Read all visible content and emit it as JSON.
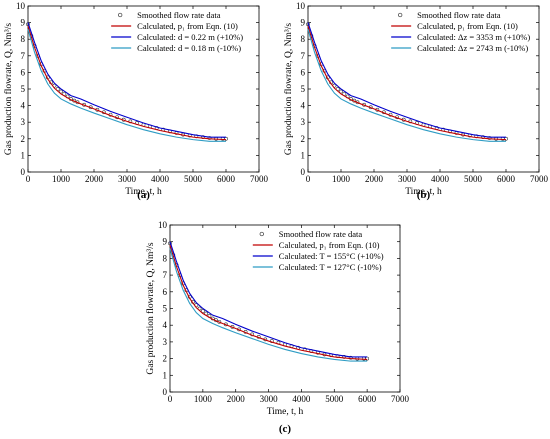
{
  "chart_data": [
    {
      "type": "line",
      "panel_label": "(a)",
      "xlabel": "Time, t, h",
      "ylabel": "Gas production flowrate, Q, Nm³/s",
      "xlim": [
        0,
        7000
      ],
      "ylim": [
        0,
        10
      ],
      "xticks": [
        "0",
        "1000",
        "2000",
        "3000",
        "4000",
        "5000",
        "6000",
        "7000"
      ],
      "yticks": [
        "0",
        "1",
        "2",
        "3",
        "4",
        "5",
        "6",
        "7",
        "8",
        "9",
        "10"
      ],
      "grid": false,
      "legend_placement": "top-right",
      "series": [
        {
          "name": "Smoothed flow rate data",
          "style": "markers",
          "color": "#333333",
          "x": [
            0,
            100,
            200,
            300,
            400,
            500,
            600,
            700,
            800,
            900,
            1000,
            1100,
            1200,
            1300,
            1400,
            1500,
            1700,
            1900,
            2100,
            2300,
            2500,
            2700,
            2900,
            3100,
            3300,
            3500,
            3700,
            3900,
            4100,
            4300,
            4500,
            4700,
            4900,
            5100,
            5300,
            5500,
            5700,
            5900,
            6000
          ],
          "y": [
            8.9,
            8.2,
            7.6,
            7.0,
            6.5,
            6.1,
            5.7,
            5.4,
            5.2,
            5.0,
            4.85,
            4.7,
            4.55,
            4.4,
            4.3,
            4.2,
            4.05,
            3.9,
            3.75,
            3.6,
            3.45,
            3.3,
            3.15,
            3.05,
            2.95,
            2.85,
            2.75,
            2.65,
            2.55,
            2.45,
            2.35,
            2.25,
            2.2,
            2.15,
            2.1,
            2.05,
            2.0,
            2.0,
            2.0
          ]
        },
        {
          "name": "Calculated, p₁ from Eqn. (10)",
          "style": "line",
          "color": "#c00000",
          "x": [
            0,
            200,
            400,
            600,
            800,
            1000,
            1300,
            1600,
            2000,
            2500,
            3000,
            3500,
            4000,
            4500,
            5000,
            5500,
            6000
          ],
          "y": [
            8.8,
            7.5,
            6.4,
            5.6,
            5.05,
            4.7,
            4.35,
            4.1,
            3.8,
            3.4,
            3.05,
            2.75,
            2.5,
            2.3,
            2.1,
            2.0,
            1.95
          ]
        },
        {
          "name": "Calculated:  d = 0.22 m (+10%)",
          "style": "line",
          "color": "#0000cc",
          "x": [
            0,
            200,
            400,
            600,
            800,
            1000,
            1300,
            1600,
            2000,
            2500,
            3000,
            3500,
            4000,
            4500,
            5000,
            5500,
            6000
          ],
          "y": [
            9.0,
            7.8,
            6.7,
            5.9,
            5.35,
            5.0,
            4.6,
            4.4,
            4.05,
            3.65,
            3.3,
            2.95,
            2.65,
            2.45,
            2.25,
            2.1,
            2.1
          ]
        },
        {
          "name": "Calculated:  d = 0.18 m (-10%)",
          "style": "line",
          "color": "#2e9cc4",
          "x": [
            0,
            200,
            400,
            600,
            800,
            1000,
            1300,
            1600,
            2000,
            2500,
            3000,
            3500,
            4000,
            4500,
            5000,
            5500,
            6000
          ],
          "y": [
            8.6,
            7.2,
            6.1,
            5.3,
            4.75,
            4.4,
            4.1,
            3.85,
            3.55,
            3.2,
            2.85,
            2.55,
            2.3,
            2.1,
            1.95,
            1.85,
            1.85
          ]
        }
      ]
    },
    {
      "type": "line",
      "panel_label": "(b)",
      "xlabel": "Time, t, h",
      "ylabel": "Gas production flowrate, Q, Nm³/s",
      "xlim": [
        0,
        7000
      ],
      "ylim": [
        0,
        10
      ],
      "xticks": [
        "0",
        "1000",
        "2000",
        "3000",
        "4000",
        "5000",
        "6000",
        "7000"
      ],
      "yticks": [
        "0",
        "1",
        "2",
        "3",
        "4",
        "5",
        "6",
        "7",
        "8",
        "9",
        "10"
      ],
      "grid": false,
      "legend_placement": "top-right",
      "series": [
        {
          "name": "Smoothed flow rate data",
          "style": "markers",
          "color": "#333333",
          "x": [
            0,
            100,
            200,
            300,
            400,
            500,
            600,
            700,
            800,
            900,
            1000,
            1100,
            1200,
            1300,
            1400,
            1500,
            1700,
            1900,
            2100,
            2300,
            2500,
            2700,
            2900,
            3100,
            3300,
            3500,
            3700,
            3900,
            4100,
            4300,
            4500,
            4700,
            4900,
            5100,
            5300,
            5500,
            5700,
            5900,
            6000
          ],
          "y": [
            8.9,
            8.2,
            7.6,
            7.0,
            6.5,
            6.1,
            5.7,
            5.4,
            5.2,
            5.0,
            4.85,
            4.7,
            4.55,
            4.4,
            4.3,
            4.2,
            4.05,
            3.9,
            3.75,
            3.6,
            3.45,
            3.3,
            3.15,
            3.05,
            2.95,
            2.85,
            2.75,
            2.65,
            2.55,
            2.45,
            2.35,
            2.25,
            2.2,
            2.15,
            2.1,
            2.05,
            2.0,
            2.0,
            2.0
          ]
        },
        {
          "name": "Calculated, p₁ from Eqn. (10)",
          "style": "line",
          "color": "#c00000",
          "x": [
            0,
            200,
            400,
            600,
            800,
            1000,
            1300,
            1600,
            2000,
            2500,
            3000,
            3500,
            4000,
            4500,
            5000,
            5500,
            6000
          ],
          "y": [
            8.8,
            7.5,
            6.4,
            5.6,
            5.05,
            4.7,
            4.35,
            4.1,
            3.8,
            3.4,
            3.05,
            2.75,
            2.5,
            2.3,
            2.1,
            2.0,
            1.95
          ]
        },
        {
          "name": "Calculated:   Δz = 3353 m (+10%)",
          "style": "line",
          "color": "#0000cc",
          "x": [
            0,
            200,
            400,
            600,
            800,
            1000,
            1300,
            1600,
            2000,
            2500,
            3000,
            3500,
            4000,
            4500,
            5000,
            5500,
            6000
          ],
          "y": [
            9.0,
            7.8,
            6.7,
            5.9,
            5.35,
            5.0,
            4.6,
            4.4,
            4.05,
            3.65,
            3.3,
            2.95,
            2.65,
            2.45,
            2.25,
            2.1,
            2.1
          ]
        },
        {
          "name": "Calculated:    Δz = 2743 m (-10%)",
          "style": "line",
          "color": "#2e9cc4",
          "x": [
            0,
            200,
            400,
            600,
            800,
            1000,
            1300,
            1600,
            2000,
            2500,
            3000,
            3500,
            4000,
            4500,
            5000,
            5500,
            6000
          ],
          "y": [
            8.6,
            7.2,
            6.1,
            5.3,
            4.75,
            4.4,
            4.1,
            3.85,
            3.55,
            3.2,
            2.85,
            2.55,
            2.3,
            2.1,
            1.95,
            1.85,
            1.85
          ]
        }
      ]
    },
    {
      "type": "line",
      "panel_label": "(c)",
      "xlabel": "Time, t, h",
      "ylabel": "Gas production flowrate, Q, Nm³/s",
      "xlim": [
        0,
        7000
      ],
      "ylim": [
        0,
        10
      ],
      "xticks": [
        "0",
        "1000",
        "2000",
        "3000",
        "4000",
        "5000",
        "6000",
        "7000"
      ],
      "yticks": [
        "0",
        "1",
        "2",
        "3",
        "4",
        "5",
        "6",
        "7",
        "8",
        "9",
        "10"
      ],
      "grid": false,
      "legend_placement": "top-right",
      "series": [
        {
          "name": "Smoothed flow rate data",
          "style": "markers",
          "color": "#333333",
          "x": [
            0,
            100,
            200,
            300,
            400,
            500,
            600,
            700,
            800,
            900,
            1000,
            1100,
            1200,
            1300,
            1400,
            1500,
            1700,
            1900,
            2100,
            2300,
            2500,
            2700,
            2900,
            3100,
            3300,
            3500,
            3700,
            3900,
            4100,
            4300,
            4500,
            4700,
            4900,
            5100,
            5300,
            5500,
            5700,
            5900,
            6000
          ],
          "y": [
            8.9,
            8.2,
            7.6,
            7.0,
            6.5,
            6.1,
            5.7,
            5.4,
            5.2,
            5.0,
            4.85,
            4.7,
            4.55,
            4.4,
            4.3,
            4.2,
            4.05,
            3.9,
            3.75,
            3.6,
            3.45,
            3.3,
            3.15,
            3.05,
            2.95,
            2.85,
            2.75,
            2.65,
            2.55,
            2.45,
            2.35,
            2.25,
            2.2,
            2.15,
            2.1,
            2.05,
            2.0,
            2.0,
            2.0
          ]
        },
        {
          "name": "Calculated, p₁ from Eqn. (10)",
          "style": "line",
          "color": "#c00000",
          "x": [
            0,
            200,
            400,
            600,
            800,
            1000,
            1300,
            1600,
            2000,
            2500,
            3000,
            3500,
            4000,
            4500,
            5000,
            5500,
            6000
          ],
          "y": [
            8.8,
            7.5,
            6.4,
            5.6,
            5.05,
            4.7,
            4.35,
            4.1,
            3.8,
            3.4,
            3.05,
            2.75,
            2.5,
            2.3,
            2.1,
            2.0,
            1.95
          ]
        },
        {
          "name": "Calculated:  T = 155°C (+10%)",
          "style": "line",
          "color": "#0000cc",
          "x": [
            0,
            200,
            400,
            600,
            800,
            1000,
            1300,
            1600,
            2000,
            2500,
            3000,
            3500,
            4000,
            4500,
            5000,
            5500,
            6000
          ],
          "y": [
            9.0,
            7.8,
            6.7,
            5.9,
            5.35,
            5.0,
            4.6,
            4.4,
            4.05,
            3.65,
            3.3,
            2.95,
            2.65,
            2.45,
            2.25,
            2.1,
            2.1
          ]
        },
        {
          "name": "Calculated:  T = 127°C (-10%)",
          "style": "line",
          "color": "#2e9cc4",
          "x": [
            0,
            200,
            400,
            600,
            800,
            1000,
            1300,
            1600,
            2000,
            2500,
            3000,
            3500,
            4000,
            4500,
            5000,
            5500,
            6000
          ],
          "y": [
            8.6,
            7.2,
            6.1,
            5.3,
            4.75,
            4.4,
            4.1,
            3.85,
            3.55,
            3.2,
            2.85,
            2.55,
            2.3,
            2.1,
            1.95,
            1.85,
            1.85
          ]
        }
      ]
    }
  ]
}
